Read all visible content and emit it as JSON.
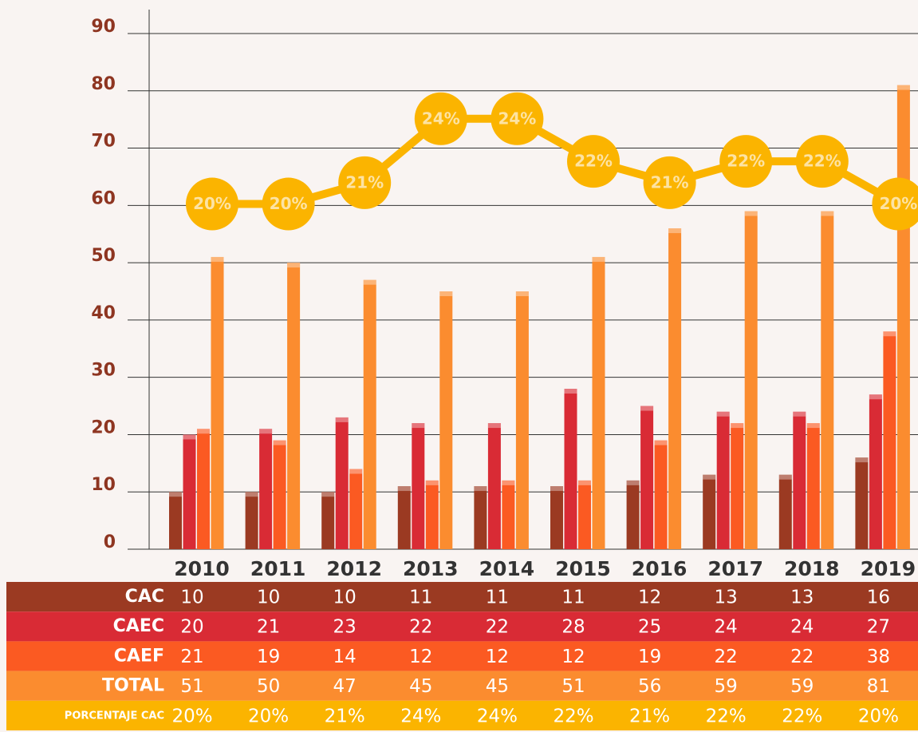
{
  "chart_data": {
    "type": "bar",
    "categories": [
      "2010",
      "2011",
      "2012",
      "2013",
      "2014",
      "2015",
      "2016",
      "2017",
      "2018",
      "2019"
    ],
    "series": [
      {
        "name": "CAC",
        "color": "#9b3a22",
        "values": [
          10,
          10,
          10,
          11,
          11,
          11,
          12,
          13,
          13,
          16
        ]
      },
      {
        "name": "CAEC",
        "color": "#d92b35",
        "values": [
          20,
          21,
          23,
          22,
          22,
          28,
          25,
          24,
          24,
          27
        ]
      },
      {
        "name": "CAEF",
        "color": "#fb5a22",
        "values": [
          21,
          19,
          14,
          12,
          12,
          12,
          19,
          22,
          22,
          38
        ]
      },
      {
        "name": "TOTAL",
        "color": "#fb8c2f",
        "values": [
          51,
          50,
          47,
          45,
          45,
          51,
          56,
          59,
          59,
          81
        ]
      },
      {
        "name": "PORCENTAJE CAC",
        "color": "#fbb400",
        "type": "line",
        "axis": "y2",
        "values": [
          20,
          20,
          21,
          24,
          24,
          22,
          21,
          22,
          22,
          20
        ],
        "value_labels": [
          "20%",
          "20%",
          "21%",
          "24%",
          "24%",
          "22%",
          "21%",
          "22%",
          "22%",
          "20%"
        ]
      }
    ],
    "ylim": [
      0,
      90
    ],
    "yticks": [
      0,
      10,
      20,
      30,
      40,
      50,
      60,
      70,
      80,
      90
    ],
    "y2lim": [
      3.8,
      28
    ],
    "grid": true
  }
}
